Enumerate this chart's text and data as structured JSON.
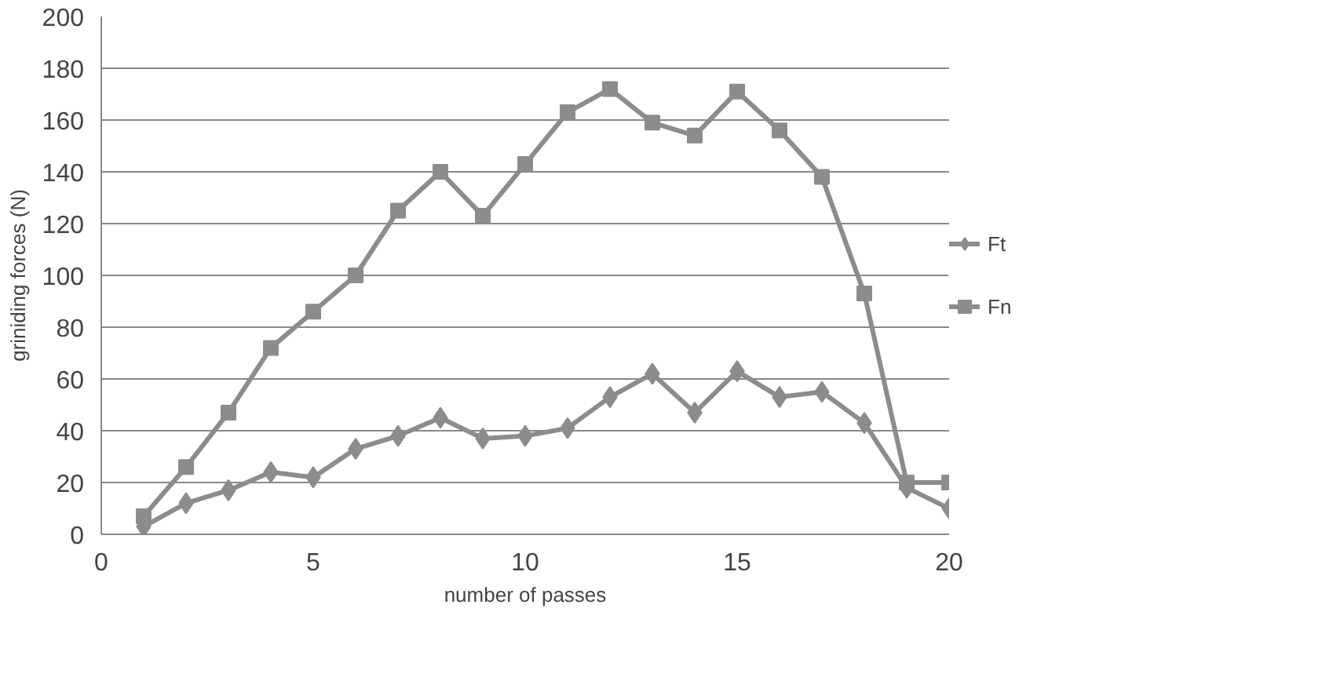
{
  "chart_data": {
    "type": "line",
    "xlabel": "number of passes",
    "ylabel": "griniding forces (N)",
    "x": [
      1,
      2,
      3,
      4,
      5,
      6,
      7,
      8,
      9,
      10,
      11,
      12,
      13,
      14,
      15,
      16,
      17,
      18,
      19,
      20
    ],
    "series": [
      {
        "name": "Ft",
        "color": "#8c8c8c",
        "marker": "diamond",
        "values": [
          3,
          12,
          17,
          24,
          22,
          33,
          38,
          45,
          37,
          38,
          41,
          53,
          62,
          47,
          63,
          53,
          55,
          43,
          18,
          10
        ]
      },
      {
        "name": "Fn",
        "color": "#8c8c8c",
        "marker": "square",
        "values": [
          7,
          26,
          47,
          72,
          86,
          100,
          125,
          140,
          123,
          143,
          163,
          172,
          159,
          154,
          171,
          156,
          138,
          93,
          20,
          20
        ]
      }
    ],
    "xlim": [
      0,
      20
    ],
    "xticks": [
      0,
      5,
      10,
      15,
      20
    ],
    "ylim": [
      0,
      200
    ],
    "yticks": [
      0,
      20,
      40,
      60,
      80,
      100,
      120,
      140,
      160,
      180,
      200
    ],
    "grid": "y",
    "legend": "right",
    "line_style": "solid"
  }
}
